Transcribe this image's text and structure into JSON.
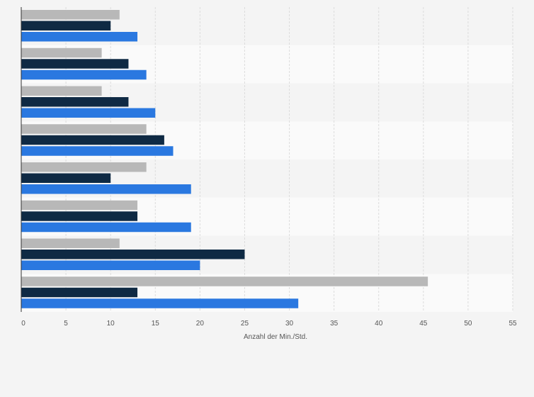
{
  "chart_data": {
    "type": "bar",
    "orientation": "horizontal",
    "categories": [
      "",
      "",
      "",
      "",
      "",
      "",
      "",
      ""
    ],
    "series": [
      {
        "color": "#b8b8b8",
        "values": [
          11,
          9,
          9,
          14,
          14,
          13,
          11,
          45.5
        ]
      },
      {
        "color": "#0f2a44",
        "values": [
          10,
          12,
          12,
          16,
          10,
          13,
          25,
          13
        ]
      },
      {
        "color": "#2a78e0",
        "values": [
          13,
          14,
          15,
          17,
          19,
          19,
          20,
          31
        ]
      }
    ],
    "xlabel": "Anzahl der Min./Std.",
    "xlim": [
      0,
      55
    ],
    "xticks": [
      "0",
      "5",
      "10",
      "15",
      "20",
      "25",
      "30",
      "35",
      "40",
      "45",
      "50",
      "55"
    ],
    "grid": true
  }
}
